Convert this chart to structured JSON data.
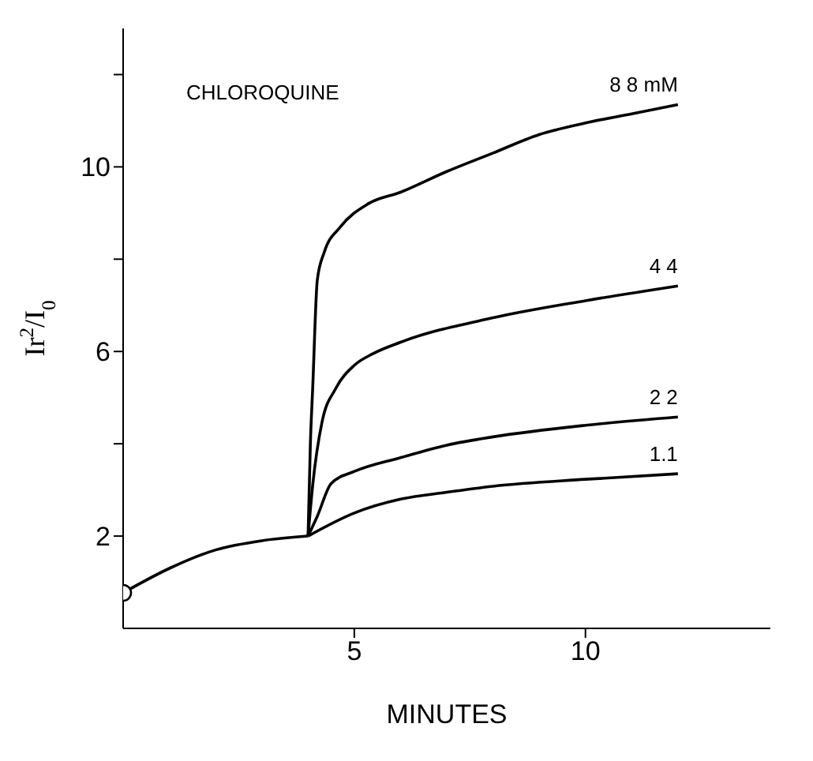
{
  "chart_data": {
    "type": "line",
    "xlabel": "MINUTES",
    "ylabel": "Ir$^{2}$/I$_{0}$",
    "annotations": [
      "CHLOROQUINE"
    ],
    "xlim": [
      0,
      14
    ],
    "xticks": [
      5,
      10
    ],
    "ylim": [
      0,
      13
    ],
    "yticks": [
      2,
      {
        "value": 4,
        "label": null
      },
      6,
      {
        "value": 8,
        "label": null
      },
      10,
      {
        "value": 12,
        "label": null
      }
    ],
    "grid": false,
    "line_style": "solid",
    "series": [
      {
        "color": "#000000",
        "x": [
          0,
          1,
          2,
          3,
          4
        ],
        "values": [
          0.77,
          1.3,
          1.7,
          1.9,
          2.0
        ]
      },
      {
        "type": "scatter",
        "marker": "circle",
        "color": "#000000",
        "x": [
          0
        ],
        "values": [
          0.77
        ]
      },
      {
        "name": "1.1",
        "color": "#000000",
        "x": [
          4,
          5,
          6,
          7,
          8,
          10,
          12
        ],
        "values": [
          2.0,
          2.5,
          2.8,
          2.95,
          3.08,
          3.23,
          3.35
        ]
      },
      {
        "name": "2 2",
        "color": "#000000",
        "x": [
          4,
          4.2,
          4.5,
          5,
          6,
          7,
          8,
          10,
          12
        ],
        "values": [
          2.0,
          2.43,
          3.14,
          3.4,
          3.7,
          3.97,
          4.15,
          4.4,
          4.58
        ]
      },
      {
        "name": "4 4",
        "color": "#000000",
        "x": [
          4,
          4.1,
          4.3,
          4.6,
          5,
          5.4,
          6,
          8,
          10,
          12
        ],
        "values": [
          2.0,
          3.1,
          4.46,
          5.2,
          5.7,
          5.95,
          6.2,
          6.73,
          7.1,
          7.42
        ]
      },
      {
        "name": "8 8 mM",
        "color": "#000000",
        "x": [
          4,
          4.05,
          4.1,
          4.2,
          4.35,
          4.7,
          5.3,
          6,
          7,
          8,
          9,
          10,
          11,
          12
        ],
        "values": [
          2.0,
          4,
          5.2,
          7.55,
          8.15,
          8.7,
          9.2,
          9.45,
          9.9,
          10.3,
          10.7,
          10.95,
          11.15,
          11.35
        ]
      }
    ]
  }
}
